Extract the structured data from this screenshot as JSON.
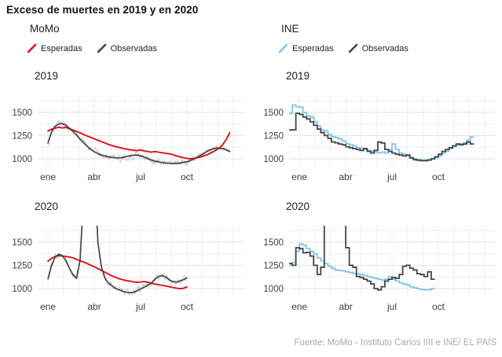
{
  "title": "Exceso de muertes en 2019 y en 2020",
  "source": "Fuente: MoMo - Instituto Carlos IIII e INE/ EL PAÍS",
  "colors": {
    "momo_esperadas": "#e10e17",
    "ine_esperadas": "#7cc5ec",
    "observadas": "#454545",
    "observadas_diarias": "#bcbcbc"
  },
  "columns": [
    {
      "id": "momo",
      "header": "MoMo",
      "legend": [
        {
          "label": "Esperadas",
          "color": "#e10e17"
        },
        {
          "label": "Observadas",
          "color": "#454545"
        }
      ]
    },
    {
      "id": "ine",
      "header": "INE",
      "legend": [
        {
          "label": "Esperadas",
          "color": "#7cc5ec"
        },
        {
          "label": "Observadas",
          "color": "#454545"
        }
      ]
    }
  ],
  "chart_data": [
    {
      "panel": "momo-2019",
      "title": "2019",
      "type": "line",
      "x_unit": "week",
      "x_max": 52,
      "x_start": 0,
      "x_ticks": [
        {
          "pos": 0,
          "label": "ene"
        },
        {
          "pos": 13,
          "label": "abr"
        },
        {
          "pos": 26,
          "label": "jul"
        },
        {
          "pos": 39,
          "label": "oct"
        }
      ],
      "y_ticks": [
        1000,
        1250,
        1500
      ],
      "y_domain": [
        915,
        1677
      ],
      "grid": true,
      "series": [
        {
          "name": "Observadas diarias",
          "style": "noisy",
          "base": "Observadas",
          "amplitude": 60,
          "seed": 7,
          "color": "#bcbcbc",
          "width": 0.7
        },
        {
          "name": "Esperadas",
          "style": "smooth",
          "color": "#e10e17",
          "width": 1.9,
          "values": [
            1300,
            1318,
            1330,
            1340,
            1332,
            1338,
            1325,
            1310,
            1295,
            1280,
            1262,
            1245,
            1230,
            1215,
            1200,
            1185,
            1170,
            1155,
            1142,
            1132,
            1122,
            1112,
            1105,
            1098,
            1092,
            1088,
            1095,
            1085,
            1078,
            1072,
            1078,
            1072,
            1066,
            1060,
            1055,
            1045,
            1032,
            1022,
            1012,
            1005,
            1000,
            1005,
            1012,
            1022,
            1035,
            1050,
            1068,
            1090,
            1115,
            1150,
            1205,
            1280
          ]
        },
        {
          "name": "Observadas",
          "style": "smooth",
          "color": "#454545",
          "width": 1.7,
          "values": [
            1170,
            1290,
            1350,
            1375,
            1378,
            1360,
            1330,
            1295,
            1255,
            1212,
            1172,
            1135,
            1102,
            1076,
            1056,
            1040,
            1030,
            1021,
            1015,
            1011,
            1010,
            1015,
            1024,
            1033,
            1039,
            1040,
            1032,
            1018,
            1002,
            987,
            976,
            967,
            960,
            955,
            951,
            950,
            950,
            954,
            960,
            969,
            982,
            998,
            1018,
            1042,
            1066,
            1088,
            1104,
            1114,
            1116,
            1110,
            1096,
            1078
          ]
        }
      ]
    },
    {
      "panel": "momo-2020",
      "title": "2020",
      "type": "line",
      "x_unit": "week",
      "x_max": 52,
      "x_start": 0,
      "x_ticks": [
        {
          "pos": 0,
          "label": "ene"
        },
        {
          "pos": 13,
          "label": "abr"
        },
        {
          "pos": 26,
          "label": "jul"
        },
        {
          "pos": 39,
          "label": "oct"
        }
      ],
      "y_ticks": [
        1000,
        1250,
        1500
      ],
      "y_domain": [
        915,
        1677
      ],
      "grid": true,
      "series": [
        {
          "name": "Observadas diarias",
          "style": "noisy",
          "base": "Observadas",
          "amplitude": 60,
          "seed": 13,
          "color": "#bcbcbc",
          "width": 0.7
        },
        {
          "name": "Esperadas",
          "style": "smooth",
          "color": "#e10e17",
          "width": 1.9,
          "values": [
            1295,
            1325,
            1345,
            1355,
            1350,
            1345,
            1340,
            1330,
            1315,
            1300,
            1285,
            1270,
            1250,
            1235,
            1215,
            1195,
            1175,
            1155,
            1135,
            1120,
            1105,
            1095,
            1085,
            1080,
            1072,
            1068,
            1070,
            1075,
            1068,
            1058,
            1048,
            1042,
            1035,
            1028,
            1020,
            1012,
            1005,
            1000,
            1002,
            1018
          ]
        },
        {
          "name": "Observadas",
          "style": "smooth",
          "color": "#454545",
          "width": 1.7,
          "values": [
            1105,
            1250,
            1340,
            1370,
            1355,
            1300,
            1220,
            1150,
            1110,
            1300,
            2000,
            2600,
            2700,
            2300,
            1500,
            1230,
            1110,
            1060,
            1030,
            1000,
            985,
            970,
            960,
            955,
            960,
            975,
            995,
            1015,
            1035,
            1060,
            1100,
            1130,
            1140,
            1125,
            1095,
            1075,
            1070,
            1080,
            1095,
            1115
          ]
        }
      ]
    },
    {
      "panel": "ine-2019",
      "title": "2019",
      "type": "line",
      "x_unit": "week",
      "x_max": 52,
      "x_start": -3,
      "x_ticks": [
        {
          "pos": 0,
          "label": "ene"
        },
        {
          "pos": 13,
          "label": "abr"
        },
        {
          "pos": 26,
          "label": "jul"
        },
        {
          "pos": 39,
          "label": "oct"
        }
      ],
      "y_ticks": [
        1000,
        1250,
        1500
      ],
      "y_domain": [
        915,
        1677
      ],
      "grid": true,
      "series": [
        {
          "name": "Esperadas",
          "style": "step",
          "color": "#7cc5ec",
          "width": 1.8,
          "values": [
            1490,
            1580,
            1560,
            1555,
            1500,
            1462,
            1450,
            1400,
            1352,
            1310,
            1300,
            1262,
            1240,
            1230,
            1212,
            1190,
            1162,
            1150,
            1140,
            1122,
            1112,
            1102,
            1092,
            1082,
            1072,
            1062,
            1072,
            1062,
            1100,
            1160,
            1100,
            1062,
            1050,
            1032,
            1012,
            1000,
            990,
            985,
            985,
            992,
            1002,
            1012,
            1032,
            1060,
            1082,
            1110,
            1130,
            1150,
            1162,
            1172,
            1200,
            1235
          ]
        },
        {
          "name": "Observadas",
          "style": "step",
          "color": "#454545",
          "width": 1.8,
          "values": [
            1310,
            1312,
            1490,
            1478,
            1450,
            1430,
            1398,
            1360,
            1320,
            1282,
            1250,
            1220,
            1182,
            1172,
            1160,
            1150,
            1130,
            1120,
            1110,
            1100,
            1090,
            1110,
            1080,
            1062,
            1090,
            1180,
            1170,
            1100,
            1080,
            1062,
            1050,
            1040,
            1030,
            1040,
            1010,
            990,
            985,
            980,
            980,
            986,
            1000,
            1022,
            1050,
            1080,
            1100,
            1120,
            1140,
            1160,
            1150,
            1160,
            1180,
            1160
          ]
        }
      ]
    },
    {
      "panel": "ine-2020",
      "title": "2020",
      "type": "line",
      "x_unit": "week",
      "x_max": 52,
      "x_start": -3,
      "x_ticks": [
        {
          "pos": 0,
          "label": "ene"
        },
        {
          "pos": 13,
          "label": "abr"
        },
        {
          "pos": 26,
          "label": "jul"
        },
        {
          "pos": 39,
          "label": "oct"
        }
      ],
      "y_ticks": [
        1000,
        1250,
        1500
      ],
      "y_domain": [
        915,
        1677
      ],
      "grid": true,
      "series": [
        {
          "name": "Esperadas",
          "style": "step",
          "color": "#7cc5ec",
          "width": 1.8,
          "values": [
            1250,
            1280,
            1400,
            1480,
            1465,
            1430,
            1400,
            1375,
            1330,
            1300,
            1270,
            1240,
            1220,
            1200,
            1195,
            1190,
            1180,
            1172,
            1165,
            1158,
            1150,
            1140,
            1130,
            1120,
            1110,
            1100,
            1092,
            1100,
            1128,
            1100,
            1080,
            1062,
            1050,
            1040,
            1020,
            1008,
            998,
            990,
            986,
            988,
            1000
          ]
        },
        {
          "name": "Observadas",
          "style": "step",
          "color": "#454545",
          "width": 1.8,
          "values": [
            1270,
            1250,
            1440,
            1430,
            1385,
            1390,
            1350,
            1250,
            1150,
            1230,
            2600,
            2800,
            2800,
            2600,
            2400,
            2000,
            1440,
            1250,
            1230,
            1130,
            1120,
            1100,
            1080,
            1050,
            1000,
            985,
            1020,
            1080,
            1100,
            1120,
            1110,
            1150,
            1240,
            1250,
            1220,
            1200,
            1160,
            1150,
            1130,
            1180,
            1100
          ]
        }
      ]
    }
  ]
}
